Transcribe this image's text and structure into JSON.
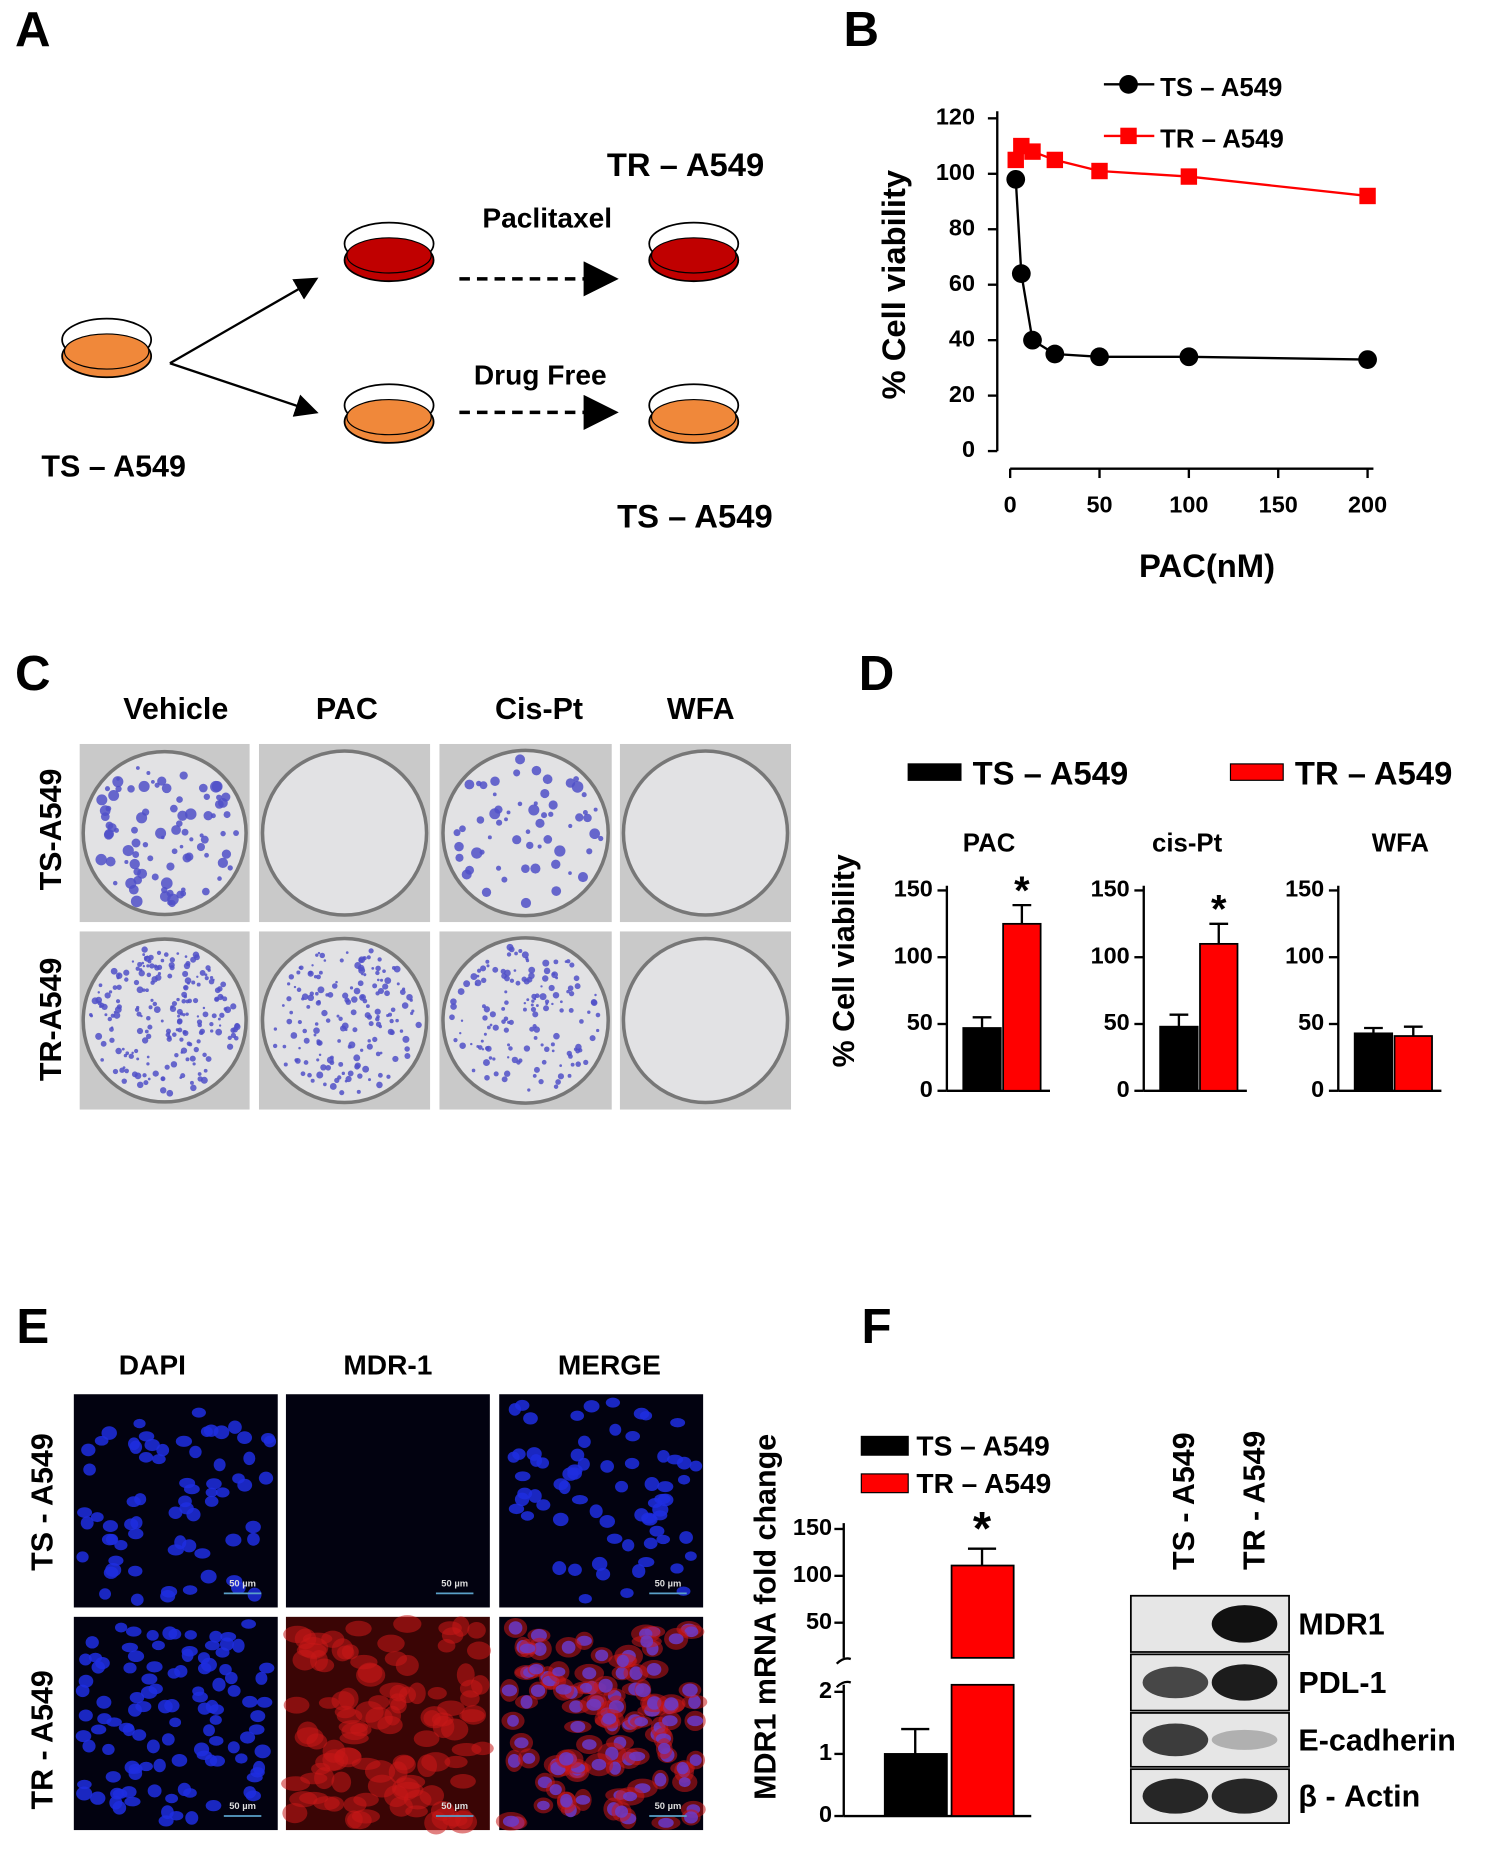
{
  "panel_labels": [
    "A",
    "B",
    "C",
    "D",
    "E",
    "F"
  ],
  "panel_a": {
    "parent": "TS – A549",
    "treatment": "Paclitaxel",
    "vehicle": "Drug Free",
    "treated": "TR – A549",
    "control": "TS – A549"
  },
  "panel_c": {
    "columns": [
      "Vehicle",
      "PAC",
      "Cis-Pt",
      "WFA"
    ],
    "rows": [
      "TS-A549",
      "TR-A549"
    ]
  },
  "panel_e": {
    "columns": [
      "DAPI",
      "MDR-1",
      "MERGE"
    ],
    "rows": [
      "TS - A549",
      "TR - A549"
    ],
    "scale_bar": "50 µm"
  },
  "panel_f_blot": {
    "lanes": [
      "TS - A549",
      "TR - A549"
    ],
    "bands": [
      "MDR1",
      "PDL-1",
      "E-cadherin",
      "β - Actin"
    ]
  },
  "chart_data": [
    {
      "type": "line",
      "xlabel": "PAC(nM)",
      "ylabel": "% Cell viability",
      "x": [
        3.125,
        6.25,
        12.5,
        25,
        50,
        100,
        200
      ],
      "series": [
        {
          "name": "TS – A549",
          "color": "#000000",
          "marker": "circle",
          "values": [
            98,
            64,
            40,
            35,
            34,
            34,
            33
          ]
        },
        {
          "name": "TR – A549",
          "color": "#ff0000",
          "marker": "square",
          "values": [
            105,
            110,
            108,
            105,
            101,
            99,
            92
          ]
        }
      ],
      "xlim": [
        0,
        200
      ],
      "xticks": [
        0,
        50,
        100,
        150,
        200
      ],
      "ylim": [
        0,
        120
      ],
      "yticks": [
        0,
        20,
        40,
        60,
        80,
        100,
        120
      ]
    },
    {
      "type": "bar",
      "ylabel": "% Cell viability",
      "categories": [
        "PAC",
        "cis-Pt",
        "WFA"
      ],
      "series": [
        {
          "name": "TS – A549",
          "color": "#000000",
          "values": [
            47,
            48,
            43
          ],
          "errors": [
            8,
            9,
            4
          ]
        },
        {
          "name": "TR – A549",
          "color": "#ff0000",
          "values": [
            125,
            110,
            41
          ],
          "errors": [
            14,
            15,
            7
          ]
        }
      ],
      "significance": [
        "*",
        "*",
        null
      ],
      "ylim": [
        0,
        150
      ],
      "yticks": [
        0,
        50,
        100,
        150
      ]
    },
    {
      "type": "broken-bar",
      "ylabel": "MDR1 mRNA fold change",
      "series": [
        {
          "name": "TS – A549",
          "color": "#000000",
          "values": [
            1
          ],
          "errors": [
            0.4
          ]
        },
        {
          "name": "TR – A549",
          "color": "#ff0000",
          "values": [
            111
          ],
          "errors": [
            18
          ]
        }
      ],
      "significance": "*",
      "ylim_lower": [
        0,
        2
      ],
      "yticks_lower": [
        0,
        1,
        2
      ],
      "ylim_upper": [
        10,
        150
      ],
      "yticks_upper": [
        50,
        100,
        150
      ]
    }
  ]
}
